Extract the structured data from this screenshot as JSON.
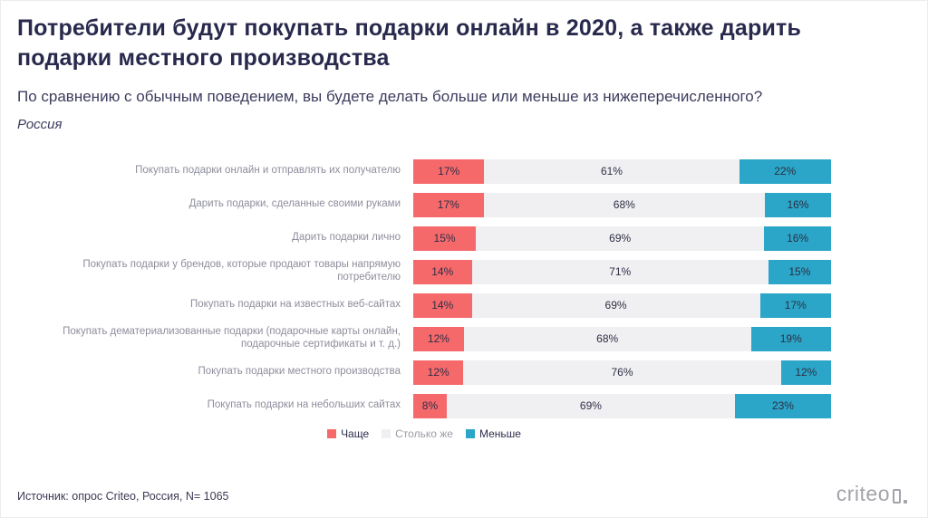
{
  "header": {
    "title": "Потребители будут покупать подарки онлайн в 2020, а также дарить подарки местного производства",
    "subtitle": "По сравнению с обычным поведением, вы будете делать больше или меньше из нижеперечисленного?",
    "region": "Россия"
  },
  "chart_data": {
    "type": "bar",
    "orientation": "horizontal_stacked",
    "value_suffix": "%",
    "axis": {
      "min": 0,
      "max": 100,
      "unit": "percent",
      "grid": false
    },
    "legend_position": "bottom",
    "categories": [
      "Покупать подарки онлайн и отправлять их получателю",
      "Дарить подарки, сделанные своими руками",
      "Дарить подарки лично",
      "Покупать подарки у брендов, которые продают товары напрямую потребителю",
      "Покупать подарки на известных веб-сайтах",
      "Покупать дематериализованные подарки (подарочные карты онлайн, подарочные сертификаты и т. д.)",
      "Покупать подарки местного производства",
      "Покупать подарки на небольших сайтах"
    ],
    "series": [
      {
        "key": "more",
        "name": "Чаще",
        "color": "#f6696b",
        "legend_text_color": "#2d2d4d",
        "values": [
          17,
          17,
          15,
          14,
          14,
          12,
          12,
          8
        ]
      },
      {
        "key": "same",
        "name": "Столько же",
        "color": "#f0f0f3",
        "legend_text_color": "#9b9ba6",
        "values": [
          61,
          68,
          69,
          71,
          69,
          68,
          76,
          69
        ]
      },
      {
        "key": "less",
        "name": "Меньше",
        "color": "#2ba6c8",
        "legend_text_color": "#2d2d4d",
        "values": [
          22,
          16,
          16,
          15,
          17,
          19,
          12,
          23
        ]
      }
    ]
  },
  "footer": {
    "source": "Источник: опрос Criteo, Россия, N= 1065",
    "logo_text": "criteo"
  }
}
